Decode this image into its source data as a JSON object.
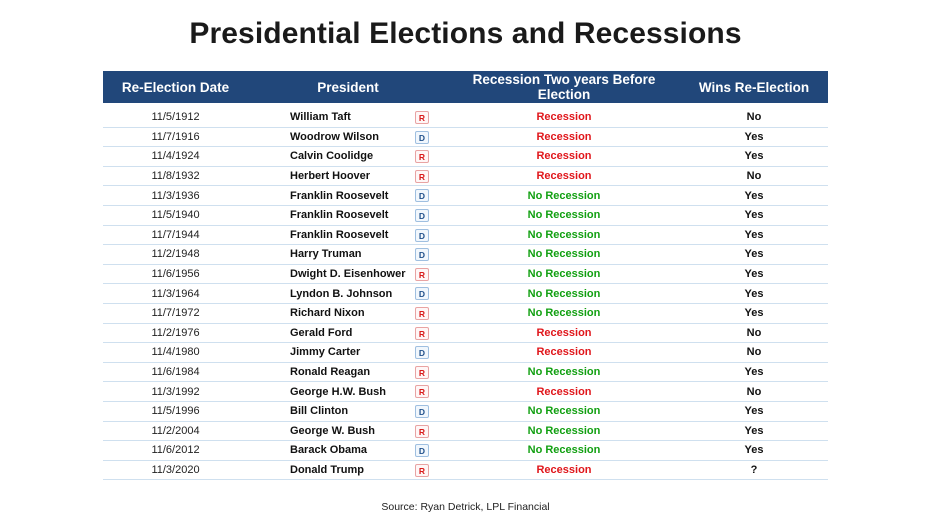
{
  "title": "Presidential Elections and Recessions",
  "headers": {
    "date": "Re-Election Date",
    "president": "President",
    "recession": "Recession Two years Before Election",
    "wins": "Wins Re-Election"
  },
  "colors": {
    "header_bg": "#21477a",
    "recession": "#e0161b",
    "no_recession": "#12a012",
    "republican": "#d81b1b",
    "democrat": "#1f4f8a"
  },
  "rows": [
    {
      "date": "11/5/1912",
      "president": "William Taft",
      "party": "R",
      "recession": "Recession",
      "wins": "No"
    },
    {
      "date": "11/7/1916",
      "president": "Woodrow Wilson",
      "party": "D",
      "recession": "Recession",
      "wins": "Yes"
    },
    {
      "date": "11/4/1924",
      "president": "Calvin Coolidge",
      "party": "R",
      "recession": "Recession",
      "wins": "Yes"
    },
    {
      "date": "11/8/1932",
      "president": "Herbert Hoover",
      "party": "R",
      "recession": "Recession",
      "wins": "No"
    },
    {
      "date": "11/3/1936",
      "president": "Franklin Roosevelt",
      "party": "D",
      "recession": "No Recession",
      "wins": "Yes"
    },
    {
      "date": "11/5/1940",
      "president": "Franklin Roosevelt",
      "party": "D",
      "recession": "No Recession",
      "wins": "Yes"
    },
    {
      "date": "11/7/1944",
      "president": "Franklin Roosevelt",
      "party": "D",
      "recession": "No Recession",
      "wins": "Yes"
    },
    {
      "date": "11/2/1948",
      "president": "Harry Truman",
      "party": "D",
      "recession": "No Recession",
      "wins": "Yes"
    },
    {
      "date": "11/6/1956",
      "president": "Dwight D. Eisenhower",
      "party": "R",
      "recession": "No Recession",
      "wins": "Yes"
    },
    {
      "date": "11/3/1964",
      "president": "Lyndon B. Johnson",
      "party": "D",
      "recession": "No Recession",
      "wins": "Yes"
    },
    {
      "date": "11/7/1972",
      "president": "Richard Nixon",
      "party": "R",
      "recession": "No Recession",
      "wins": "Yes"
    },
    {
      "date": "11/2/1976",
      "president": "Gerald Ford",
      "party": "R",
      "recession": "Recession",
      "wins": "No"
    },
    {
      "date": "11/4/1980",
      "president": "Jimmy Carter",
      "party": "D",
      "recession": "Recession",
      "wins": "No"
    },
    {
      "date": "11/6/1984",
      "president": "Ronald Reagan",
      "party": "R",
      "recession": "No Recession",
      "wins": "Yes"
    },
    {
      "date": "11/3/1992",
      "president": "George H.W. Bush",
      "party": "R",
      "recession": "Recession",
      "wins": "No"
    },
    {
      "date": "11/5/1996",
      "president": "Bill Clinton",
      "party": "D",
      "recession": "No Recession",
      "wins": "Yes"
    },
    {
      "date": "11/2/2004",
      "president": "George W. Bush",
      "party": "R",
      "recession": "No Recession",
      "wins": "Yes"
    },
    {
      "date": "11/6/2012",
      "president": "Barack Obama",
      "party": "D",
      "recession": "No Recession",
      "wins": "Yes"
    },
    {
      "date": "11/3/2020",
      "president": "Donald Trump",
      "party": "R",
      "recession": "Recession",
      "wins": "?"
    }
  ],
  "source": "Source: Ryan Detrick, LPL Financial"
}
